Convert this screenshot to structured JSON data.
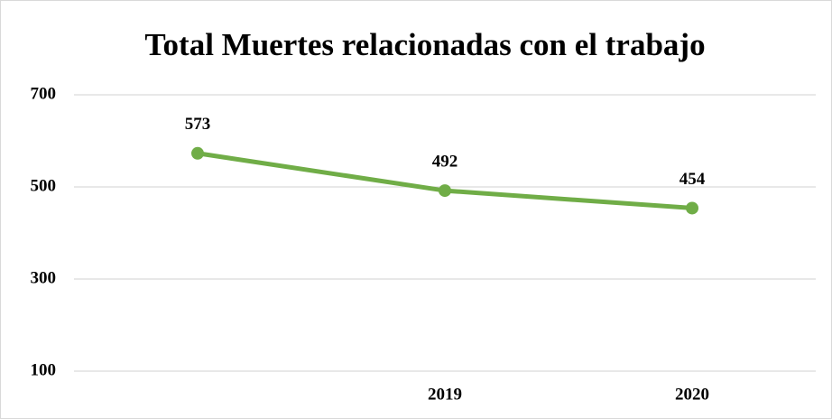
{
  "chart_data": {
    "type": "line",
    "title": "Total Muertes relacionadas con el trabajo",
    "categories": [
      null,
      "2019",
      "2020"
    ],
    "series": [
      {
        "name": "Total",
        "color": "#70ad47",
        "values": [
          573,
          492,
          454
        ]
      }
    ],
    "ylim": [
      100,
      700
    ],
    "yticks": [
      100,
      300,
      500,
      700
    ],
    "grid": true
  }
}
